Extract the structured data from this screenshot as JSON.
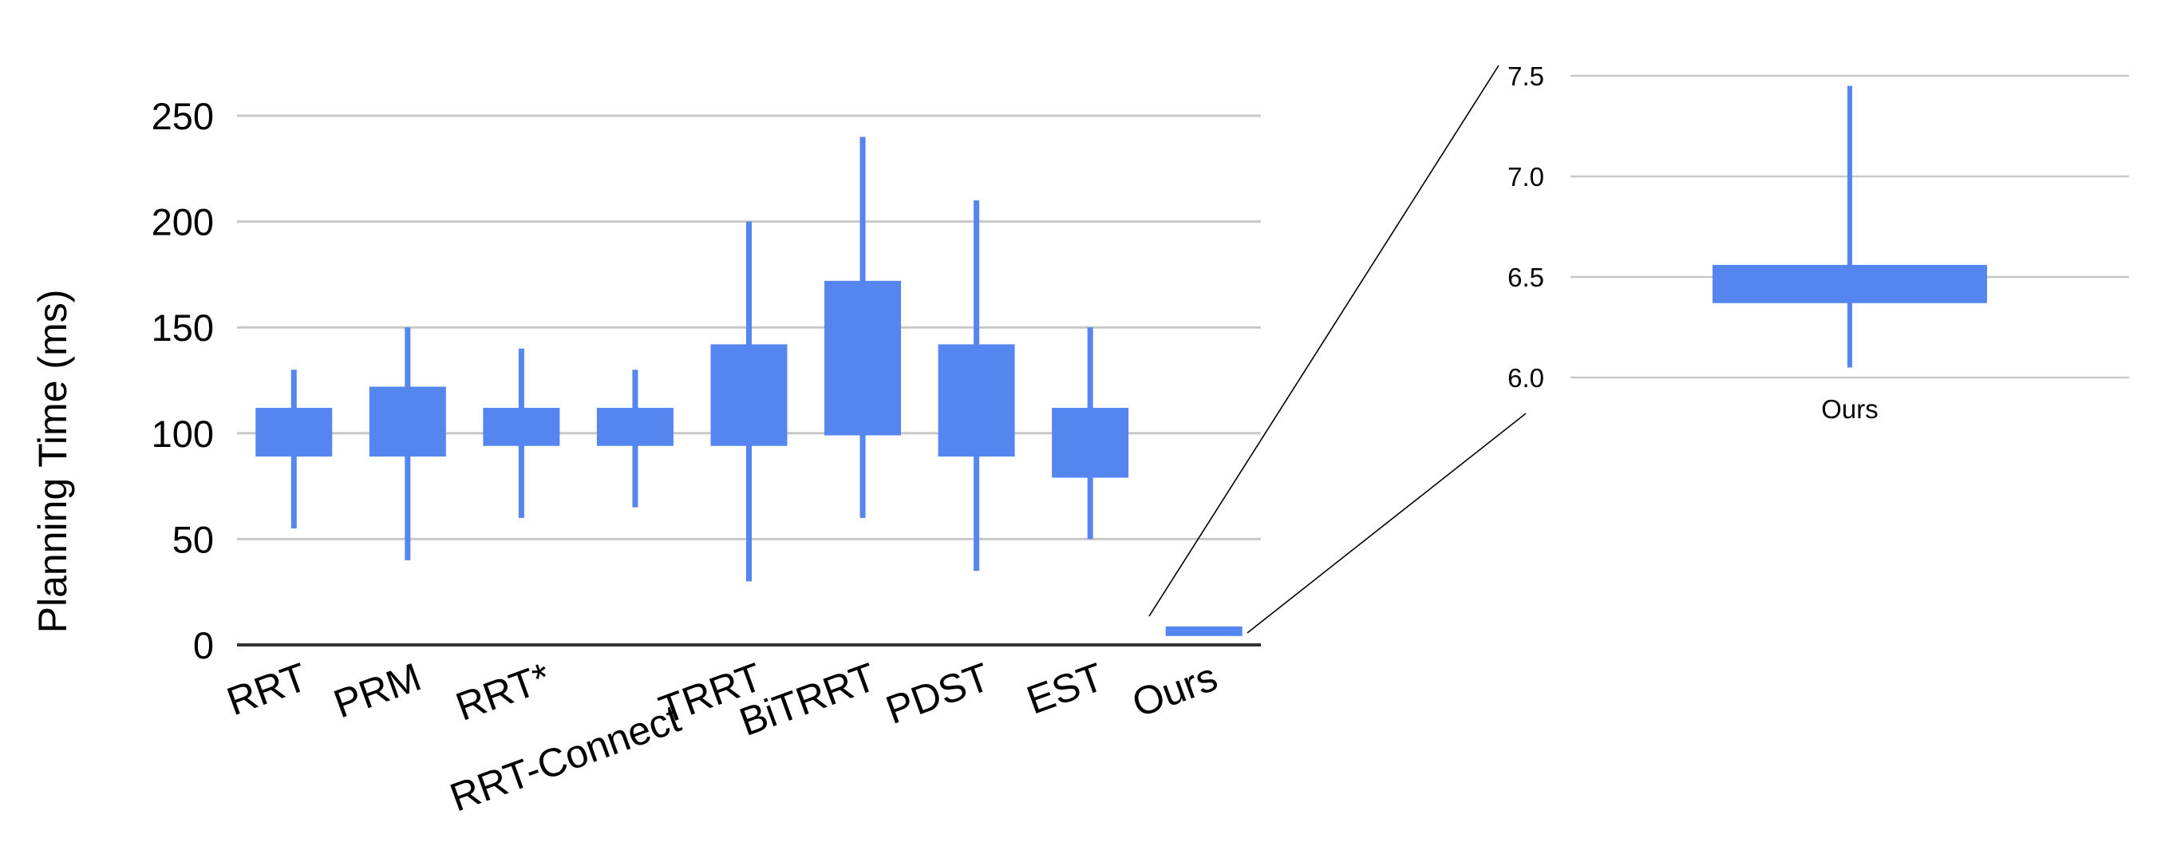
{
  "chart_data": [
    {
      "type": "box",
      "ylabel": "Planning Time (ms)",
      "xlabel": "",
      "ylim": [
        0,
        250
      ],
      "yticks": [
        "0",
        "50",
        "100",
        "150",
        "200",
        "250"
      ],
      "grid": true,
      "color": "#5585EE",
      "categories": [
        "RRT",
        "PRM",
        "RRT*",
        "RRT-Connect",
        "TRRT",
        "BiTRRT",
        "PDST",
        "EST",
        "Ours"
      ],
      "boxes": [
        {
          "label": "RRT",
          "min": 55,
          "q1": 89,
          "q3": 112,
          "max": 130
        },
        {
          "label": "PRM",
          "min": 40,
          "q1": 89,
          "q3": 122,
          "max": 150
        },
        {
          "label": "RRT*",
          "min": 60,
          "q1": 94,
          "q3": 112,
          "max": 140
        },
        {
          "label": "RRT-Connect",
          "min": 65,
          "q1": 94,
          "q3": 112,
          "max": 130
        },
        {
          "label": "TRRT",
          "min": 30,
          "q1": 94,
          "q3": 142,
          "max": 200
        },
        {
          "label": "BiTRRT",
          "min": 60,
          "q1": 99,
          "q3": 172,
          "max": 240
        },
        {
          "label": "PDST",
          "min": 35,
          "q1": 89,
          "q3": 142,
          "max": 210
        },
        {
          "label": "EST",
          "min": 50,
          "q1": 79,
          "q3": 112,
          "max": 150
        },
        {
          "label": "Ours",
          "min": 6.05,
          "q1": 6.37,
          "q3": 6.56,
          "max": 7.45
        }
      ]
    },
    {
      "type": "box",
      "ylim": [
        6.0,
        7.5
      ],
      "yticks": [
        "6.0",
        "6.5",
        "7.0",
        "7.5"
      ],
      "grid": true,
      "color": "#5585EE",
      "categories": [
        "Ours"
      ],
      "boxes": [
        {
          "label": "Ours",
          "min": 6.05,
          "q1": 6.37,
          "q3": 6.56,
          "max": 7.45
        }
      ]
    }
  ]
}
